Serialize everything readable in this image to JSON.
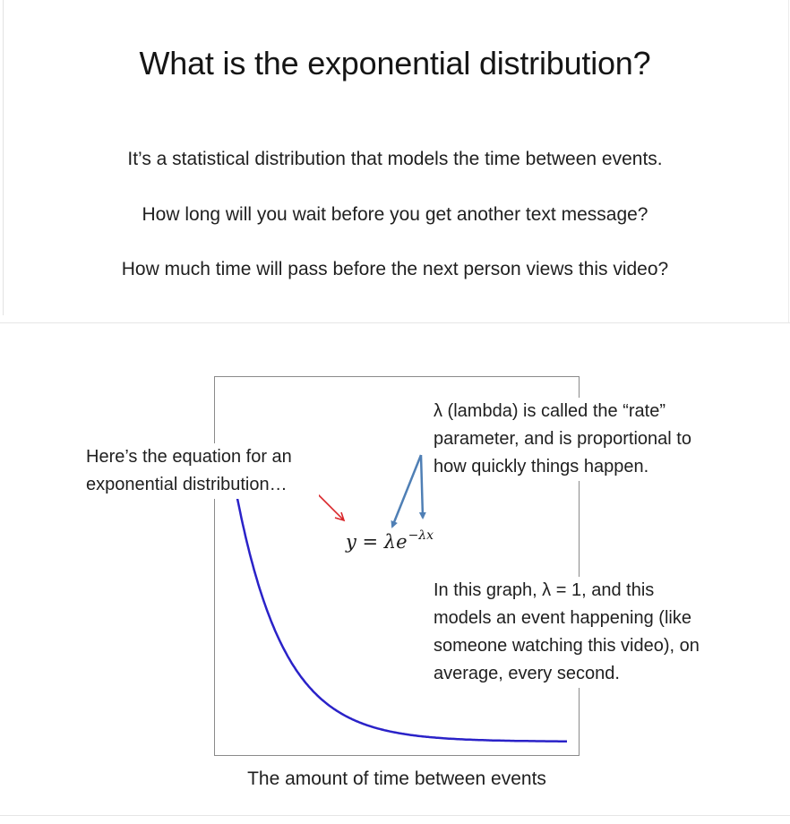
{
  "slide1": {
    "title": "What is the exponential distribution?",
    "lines": [
      "It’s a statistical distribution that models the time between events.",
      "How long will you wait before you get another text message?",
      "How much time will pass before the next person views this video?"
    ]
  },
  "slide2": {
    "left_note": [
      "Here’s the equation for an",
      "exponential distribution…"
    ],
    "rate_note": [
      "λ (lambda) is called the “rate”",
      "parameter, and is proportional to",
      "how quickly things happen."
    ],
    "graph_note": [
      "In this graph, λ = 1, and this",
      "models an event happening (like",
      "someone watching this video), on",
      "average, every second."
    ],
    "equation_base": "y = λe",
    "equation_exponent": "−λx",
    "x_axis_label": "The amount of time between events",
    "curve": {
      "lambda": 1,
      "x_range": [
        0,
        7
      ],
      "color": "#2a22c8"
    },
    "colors": {
      "rate_arrows": "#4f7fb5",
      "pointer_arrow": "#d9262a",
      "frame": "#8a8a8a"
    }
  }
}
